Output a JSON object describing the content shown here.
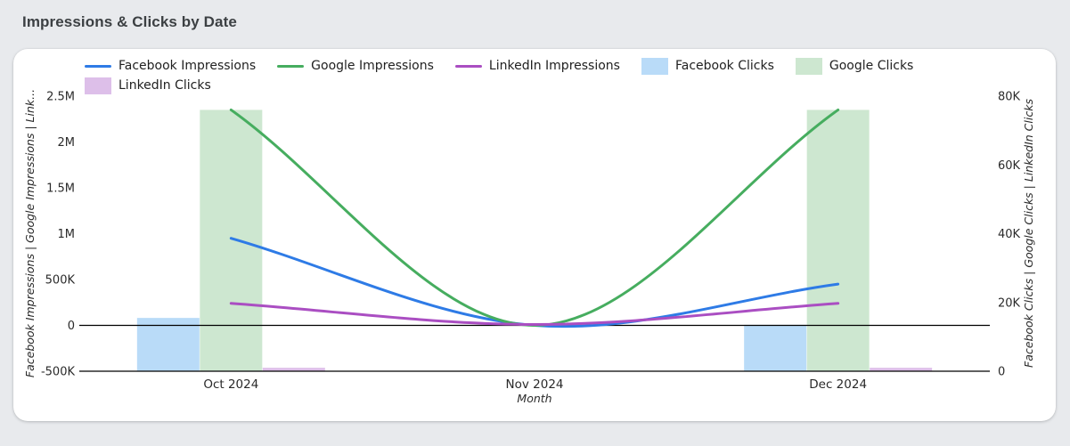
{
  "header": {
    "title": "Impressions & Clicks by Date"
  },
  "legend": {
    "rows": [
      [
        {
          "label": "Facebook Impressions",
          "color": "#2e7be6",
          "swatch": "line"
        },
        {
          "label": "Google Impressions",
          "color": "#46ad5f",
          "swatch": "line"
        },
        {
          "label": "LinkedIn Impressions",
          "color": "#aa4ec2",
          "swatch": "line"
        },
        {
          "label": "Facebook Clicks",
          "color": "#b9dbf8",
          "swatch": "rect"
        },
        {
          "label": "Google Clicks",
          "color": "#cde7d0",
          "swatch": "rect"
        }
      ],
      [
        {
          "label": "LinkedIn Clicks",
          "color": "#ddbfe9",
          "swatch": "rect"
        }
      ]
    ]
  },
  "chart_data": {
    "type": "combo",
    "title": "Impressions & Clicks by Date",
    "x_axis": {
      "title": "Month",
      "categories": [
        "Oct 2024",
        "Nov 2024",
        "Dec 2024"
      ]
    },
    "left_axis": {
      "title": "Facebook Impressions | Google Impressions | Link...",
      "range": [
        -500000,
        2500000
      ],
      "ticks": [
        {
          "label": "2.5M",
          "value": 2500000
        },
        {
          "label": "2M",
          "value": 2000000
        },
        {
          "label": "1.5M",
          "value": 1500000
        },
        {
          "label": "1M",
          "value": 1000000
        },
        {
          "label": "500K",
          "value": 500000
        },
        {
          "label": "0",
          "value": 0
        },
        {
          "label": "-500K",
          "value": -500000
        }
      ]
    },
    "right_axis": {
      "title": "Facebook Clicks | Google Clicks | LinkedIn Clicks",
      "range": [
        0,
        80000
      ],
      "ticks": [
        {
          "label": "80K",
          "value": 80000
        },
        {
          "label": "60K",
          "value": 60000
        },
        {
          "label": "40K",
          "value": 40000
        },
        {
          "label": "20K",
          "value": 20000
        },
        {
          "label": "0",
          "value": 0
        }
      ]
    },
    "line_series": [
      {
        "name": "Facebook Impressions",
        "axis": "left",
        "color": "#2e7be6",
        "values": [
          950000,
          0,
          450000
        ]
      },
      {
        "name": "Google Impressions",
        "axis": "left",
        "color": "#46ad5f",
        "values": [
          2350000,
          0,
          2350000
        ]
      },
      {
        "name": "LinkedIn Impressions",
        "axis": "left",
        "color": "#aa4ec2",
        "values": [
          240000,
          10000,
          240000
        ]
      }
    ],
    "bar_series": [
      {
        "name": "Facebook Clicks",
        "axis": "right",
        "color": "#b9dbf8",
        "values": [
          15500,
          0,
          13500
        ]
      },
      {
        "name": "Google Clicks",
        "axis": "right",
        "color": "#cde7d0",
        "values": [
          76000,
          0,
          76000
        ]
      },
      {
        "name": "LinkedIn Clicks",
        "axis": "right",
        "color": "#ddbfe9",
        "values": [
          1000,
          0,
          1000
        ]
      }
    ],
    "axis_line_color": "#000000",
    "text_color": "#2a2a2a",
    "grid": false,
    "legend_position": "top"
  }
}
